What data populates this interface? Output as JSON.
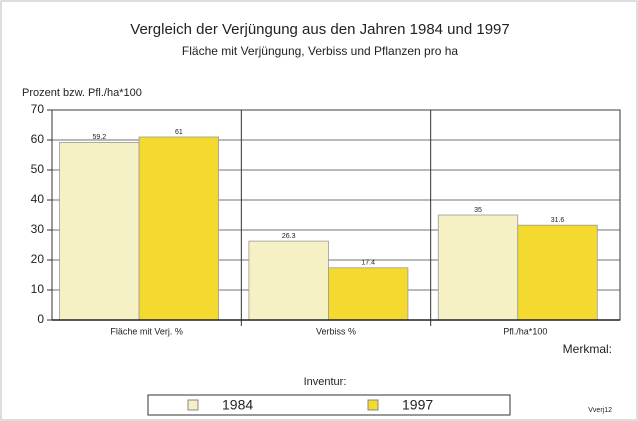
{
  "chart_data": {
    "type": "bar",
    "title": "Vergleich der Verjüngung aus den Jahren 1984 und 1997",
    "subtitle": "Fläche mit Verjüngung, Verbiss und Pflanzen pro ha",
    "y_label": "Prozent bzw. Pfl./ha*100",
    "x_label": "Merkmal:",
    "legend_title": "Inventur:",
    "note": "Vverj12",
    "categories": [
      "Fläche mit Verj. %",
      "Verbiss %",
      "Pfl./ha*100"
    ],
    "series": [
      {
        "name": "1984",
        "color": "#f6f1c4",
        "values": [
          59.2,
          26.3,
          35
        ]
      },
      {
        "name": "1997",
        "color": "#f4da2e",
        "values": [
          61,
          17.4,
          31.6
        ]
      }
    ],
    "ylim": [
      0,
      70
    ],
    "yticks": [
      0,
      10,
      20,
      30,
      40,
      50,
      60,
      70
    ],
    "grid": true
  }
}
